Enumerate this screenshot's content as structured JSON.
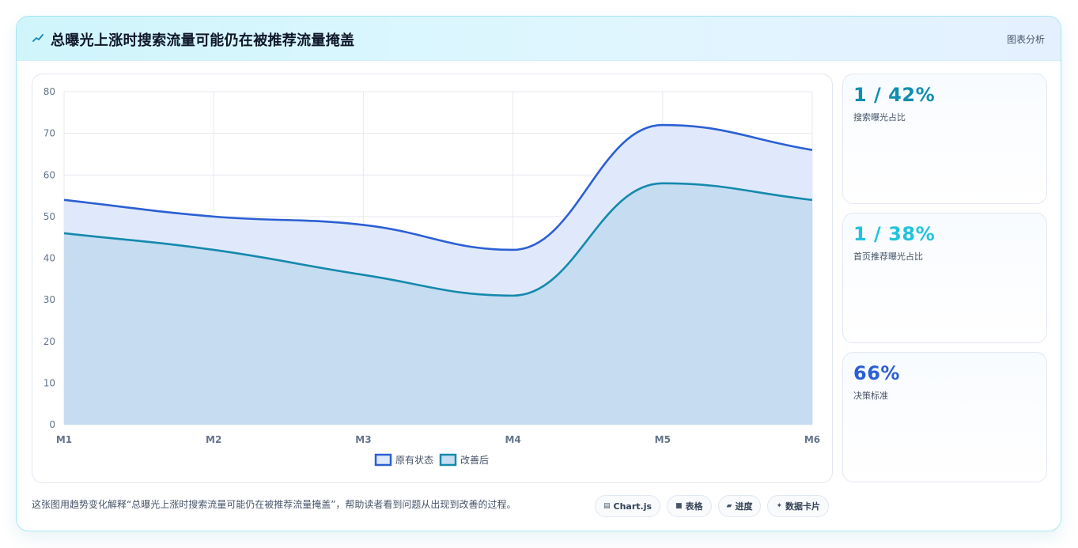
{
  "header": {
    "icon": "chart-trend-icon",
    "title": "总曝光上涨时搜索流量可能仍在被推荐流量掩盖",
    "tag": "图表分析"
  },
  "chart_data": {
    "type": "area",
    "categories": [
      "M1",
      "M2",
      "M3",
      "M4",
      "M5",
      "M6"
    ],
    "ylim": [
      0,
      80
    ],
    "yticks": [
      0,
      10,
      20,
      30,
      40,
      50,
      60,
      70,
      80
    ],
    "grid": true,
    "legend_position": "bottom-center",
    "series": [
      {
        "name": "原有状态",
        "values": [
          54,
          50,
          48,
          42,
          72,
          66
        ],
        "color": "#2b5fd4",
        "fill": "#e0e9fb"
      },
      {
        "name": "改善后",
        "values": [
          46,
          42,
          36,
          31,
          58,
          54
        ],
        "color": "#1589ad",
        "fill": "#c5dcf1"
      }
    ]
  },
  "stats": [
    {
      "value": "1 / 42%",
      "label": "搜索曝光占比",
      "color": "#0e8fae"
    },
    {
      "value": "1 / 38%",
      "label": "首页推荐曝光占比",
      "color": "#22c3dd"
    },
    {
      "value": "66%",
      "label": "决策标准",
      "color": "#2b5fd4"
    }
  ],
  "footer": {
    "text": "这张图用趋势变化解释“总曝光上涨时搜索流量可能仍在被推荐流量掩盖”，帮助读者看到问题从出现到改善的过程。",
    "chips": [
      {
        "icon": "chart-icon",
        "glyph": "▤",
        "label": "Chart.js"
      },
      {
        "icon": "table-icon",
        "glyph": "■",
        "label": "表格"
      },
      {
        "icon": "progress-icon",
        "glyph": "▰",
        "label": "进度"
      },
      {
        "icon": "sparkle-icon",
        "glyph": "✦",
        "label": "数据卡片"
      }
    ]
  }
}
